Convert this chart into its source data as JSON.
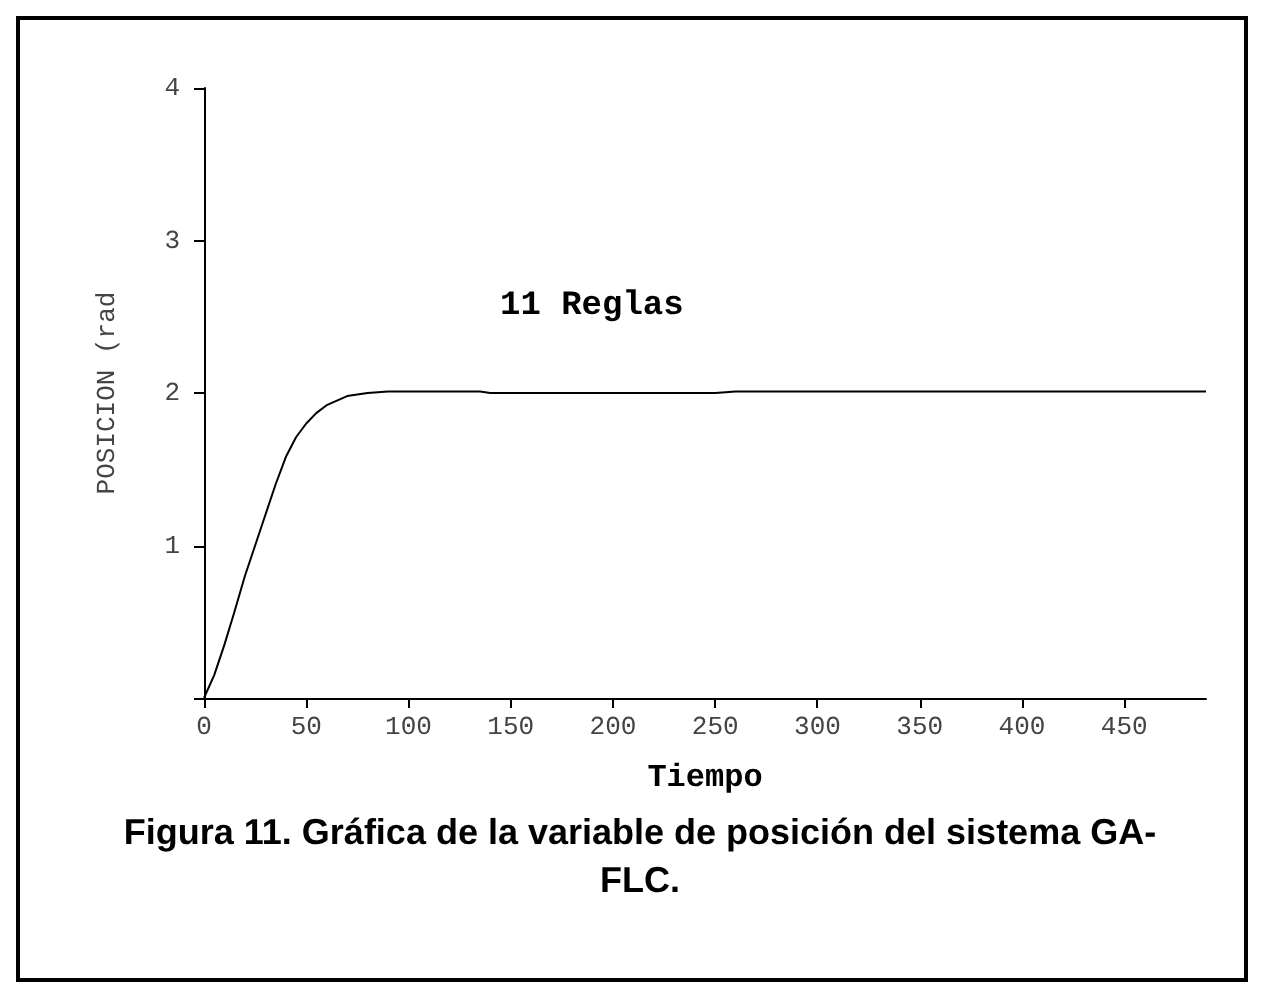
{
  "chart_data": {
    "type": "line",
    "xlabel": "Tiempo",
    "ylabel": "POSICION (rad",
    "annotations": [
      "11 Reglas",
      "Figura 11. Gráfica  de la variable de posición  del sistema GA-FLC."
    ],
    "x": [
      0,
      5,
      10,
      15,
      20,
      25,
      30,
      35,
      40,
      45,
      50,
      55,
      60,
      65,
      70,
      75,
      80,
      90,
      100,
      120,
      135,
      140,
      200,
      250,
      260,
      300,
      400,
      490
    ],
    "series": [
      {
        "color": "#000000",
        "values": [
          0,
          0.15,
          0.35,
          0.57,
          0.8,
          1.0,
          1.2,
          1.4,
          1.58,
          1.71,
          1.8,
          1.87,
          1.92,
          1.95,
          1.98,
          1.99,
          2.0,
          2.01,
          2.01,
          2.01,
          2.01,
          2.0,
          2.0,
          2.0,
          2.01,
          2.01,
          2.01,
          2.01
        ]
      }
    ],
    "xlim": [
      0,
      490
    ],
    "xticks": [
      0,
      50,
      100,
      150,
      200,
      250,
      300,
      350,
      400,
      450
    ],
    "ylim": [
      0,
      4
    ],
    "yticks": [
      {
        "value": 0,
        "label": null
      },
      1,
      2,
      3,
      4
    ],
    "grid": false,
    "marker": "none",
    "line_style": "solid"
  }
}
